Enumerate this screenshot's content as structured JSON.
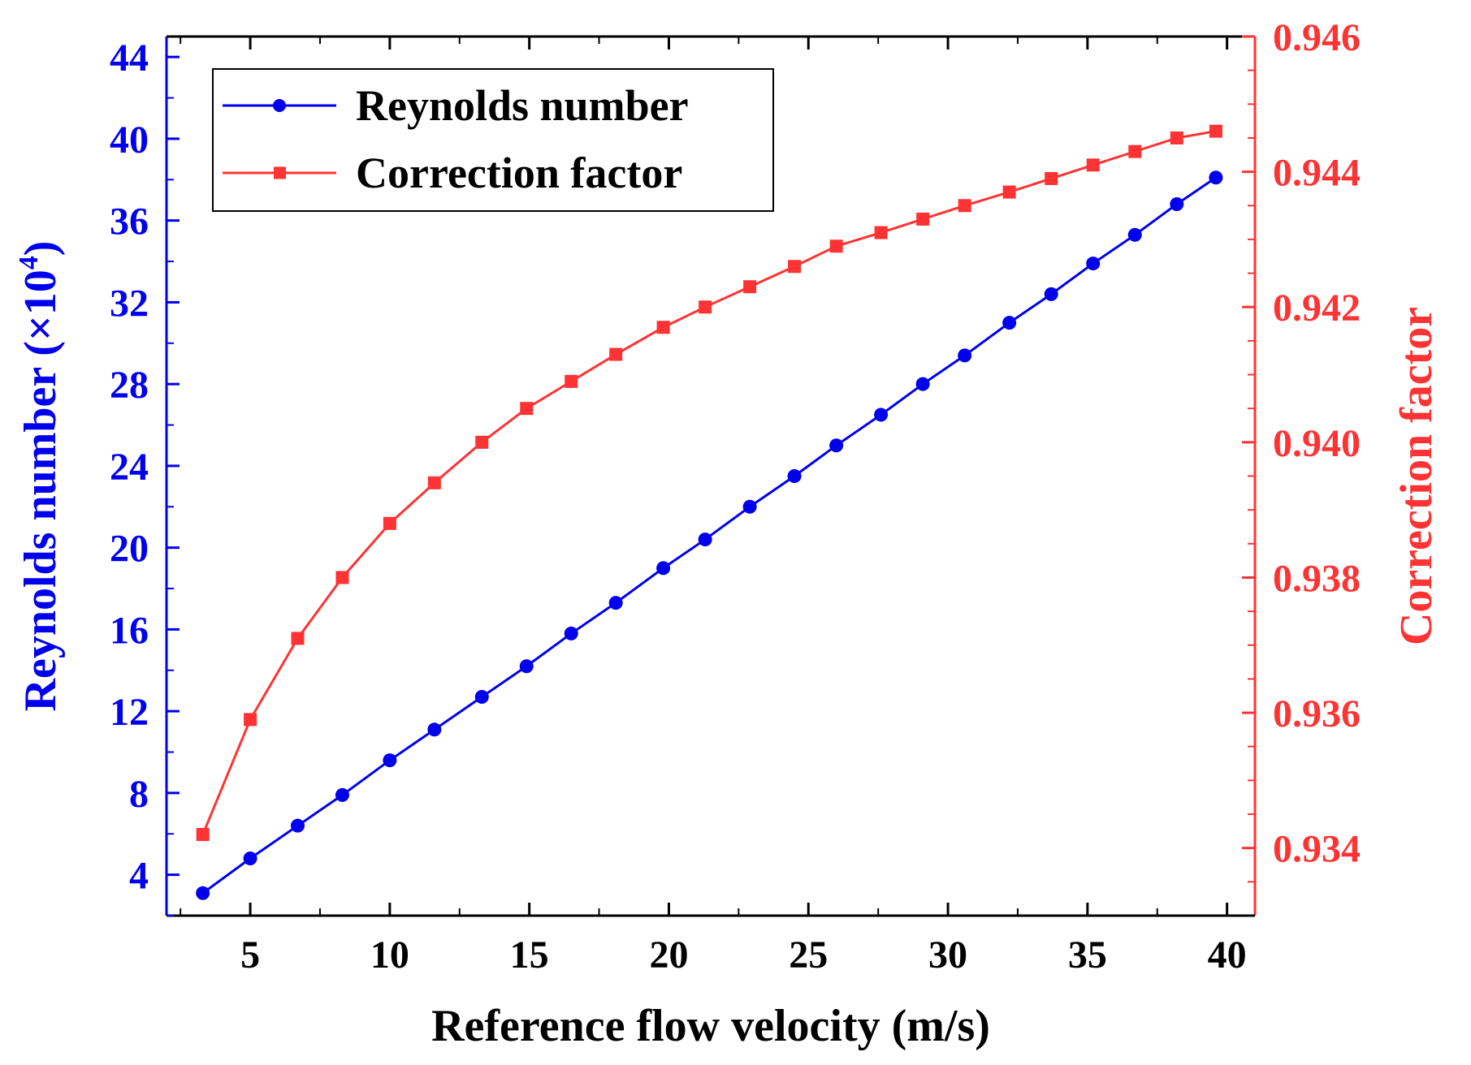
{
  "chart_data": {
    "type": "line",
    "xlabel": "Reference flow velocity (m/s)",
    "ylabel": {
      "text": "Reynolds number (×10",
      "superscript": "4",
      "suffix": ")"
    },
    "y2label": "Correction factor",
    "xlim": [
      2,
      41
    ],
    "ylim": [
      2,
      45
    ],
    "y2lim": [
      0.933,
      0.946
    ],
    "xticks": [
      5,
      10,
      15,
      20,
      25,
      30,
      35,
      40
    ],
    "yticks": [
      4,
      8,
      12,
      16,
      20,
      24,
      28,
      32,
      36,
      40,
      44
    ],
    "y2ticks": [
      "0.934",
      "0.936",
      "0.938",
      "0.940",
      "0.942",
      "0.944",
      "0.946"
    ],
    "legend_position": "top-left",
    "series": [
      {
        "name": "Reynolds number",
        "axis": "left",
        "color": "#0000ee",
        "marker": "circle",
        "x": [
          3.3,
          5.0,
          6.7,
          8.3,
          10.0,
          11.6,
          13.3,
          14.9,
          16.5,
          18.1,
          19.8,
          21.3,
          22.9,
          24.5,
          26.0,
          27.6,
          29.1,
          30.6,
          32.2,
          33.7,
          35.2,
          36.7,
          38.2,
          39.6
        ],
        "values": [
          3.1,
          4.8,
          6.4,
          7.9,
          9.6,
          11.1,
          12.7,
          14.2,
          15.8,
          17.3,
          19.0,
          20.4,
          22.0,
          23.5,
          25.0,
          26.5,
          28.0,
          29.4,
          31.0,
          32.4,
          33.9,
          35.3,
          36.8,
          38.1
        ]
      },
      {
        "name": "Correction factor",
        "axis": "right",
        "color": "#ff3333",
        "marker": "square",
        "x": [
          3.3,
          5.0,
          6.7,
          8.3,
          10.0,
          11.6,
          13.3,
          14.9,
          16.5,
          18.1,
          19.8,
          21.3,
          22.9,
          24.5,
          26.0,
          27.6,
          29.1,
          30.6,
          32.2,
          33.7,
          35.2,
          36.7,
          38.2,
          39.6
        ],
        "values": [
          0.9342,
          0.9359,
          0.9371,
          0.938,
          0.9388,
          0.9394,
          0.94,
          0.9405,
          0.9409,
          0.9413,
          0.9417,
          0.942,
          0.9423,
          0.9426,
          0.9429,
          0.9431,
          0.9433,
          0.9435,
          0.9437,
          0.9439,
          0.9441,
          0.9443,
          0.9445,
          0.9446
        ]
      }
    ]
  }
}
